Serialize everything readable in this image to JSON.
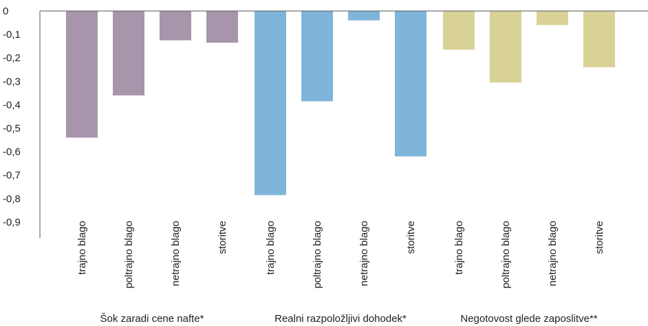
{
  "chart_data": {
    "type": "bar",
    "title": "",
    "xlabel": "",
    "ylabel": "",
    "ylim": [
      -0.9,
      0
    ],
    "yticks": [
      "0",
      "-0,1",
      "-0,2",
      "-0,3",
      "-0,4",
      "-0,5",
      "-0,6",
      "-0,7",
      "-0,8",
      "-0,9"
    ],
    "grid": false,
    "legend": "none",
    "groups": [
      {
        "label": "Šok zaradi cene nafte*",
        "color": "#a795ab",
        "categories": [
          "trajno blago",
          "poltrajno blago",
          "netrajno blago",
          "storitve"
        ],
        "values": [
          -0.54,
          -0.36,
          -0.125,
          -0.135
        ]
      },
      {
        "label": "Realni razpoložljivi dohodek*",
        "color": "#7fb5da",
        "categories": [
          "trajno blago",
          "poltrajno blago",
          "netrajno blago",
          "storitve"
        ],
        "values": [
          -0.785,
          -0.385,
          -0.04,
          -0.62
        ]
      },
      {
        "label": "Negotovost glede zaposlitve**",
        "color": "#d9d297",
        "categories": [
          "trajno blago",
          "poltrajno blago",
          "netrajno blago",
          "storitve"
        ],
        "values": [
          -0.165,
          -0.305,
          -0.06,
          -0.24
        ]
      }
    ]
  }
}
